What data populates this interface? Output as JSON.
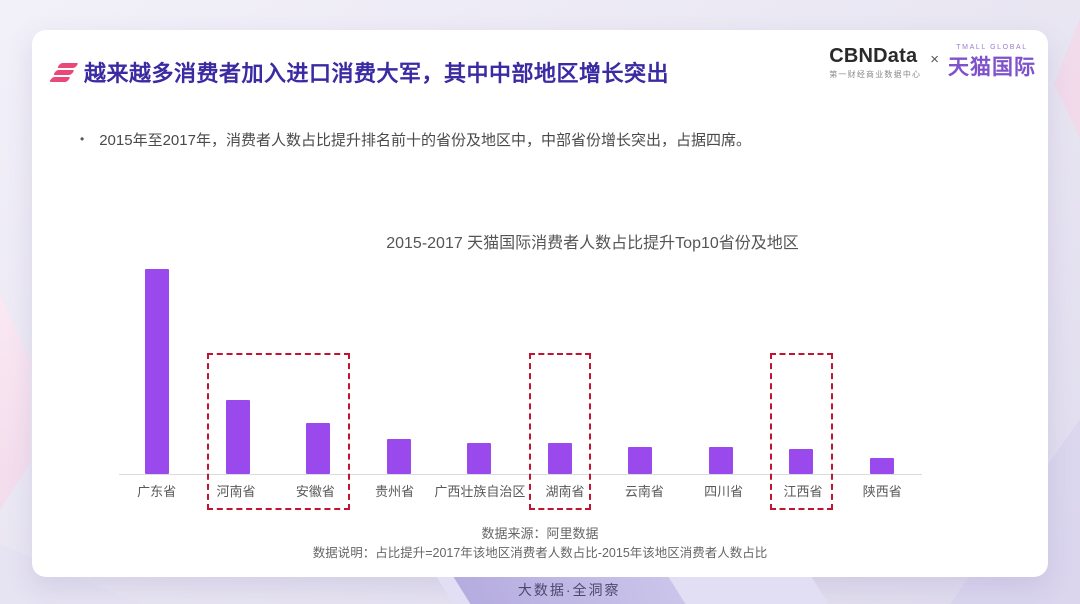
{
  "header": {
    "title": "越来越多消费者加入进口消费大军，其中中部地区增长突出",
    "cbndata": {
      "name": "CBNData",
      "subtitle": "第一财经商业数据中心"
    },
    "separator": "×",
    "tmall": {
      "tagline": "TMALL GLOBAL",
      "name": "天猫国际"
    }
  },
  "bullet_text": "2015年至2017年，消费者人数占比提升排名前十的省份及地区中，中部省份增长突出，占据四席。",
  "chart_data": {
    "type": "bar",
    "title": "2015-2017 天猫国际消费者人数占比提升Top10省份及地区",
    "categories": [
      "广东省",
      "河南省",
      "安徽省",
      "贵州省",
      "广西壮族自治区",
      "湖南省",
      "云南省",
      "四川省",
      "江西省",
      "陕西省"
    ],
    "values_relative": [
      100,
      36,
      25,
      17,
      15,
      15,
      13,
      13,
      12,
      8
    ],
    "value_note": "图中未显示数值轴与数据标签，数值为柱体相对高度（广东省=100）",
    "ylim": [
      0,
      100
    ],
    "grid": "off",
    "legend": "none",
    "bar_color": "#9A49EC",
    "axis_line_color": "#DCDCDC",
    "highlight_color": "#C11430",
    "highlight_boxes": [
      {
        "from": 1,
        "to": 2
      },
      {
        "from": 5,
        "to": 5
      },
      {
        "from": 8,
        "to": 8
      }
    ]
  },
  "footer": {
    "source": "数据来源：阿里数据",
    "note": "数据说明：占比提升=2017年该地区消费者人数占比-2015年该地区消费者人数占比"
  },
  "banner": {
    "label": "大数据·全洞察"
  },
  "colors": {
    "title_indigo": "#3B2BA3",
    "accent_pink": "#EA4879",
    "bar_purple": "#9A49EC",
    "highlight_red": "#C11430",
    "tmall_purple": "#7F52CC"
  }
}
